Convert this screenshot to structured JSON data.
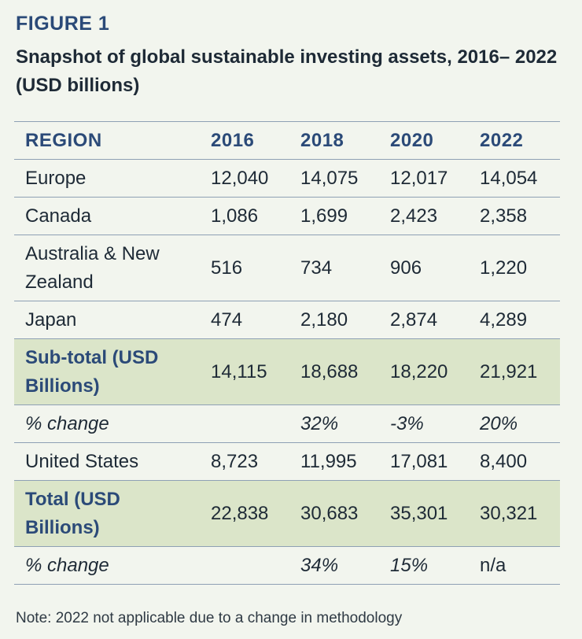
{
  "figure": {
    "label": "FIGURE 1",
    "title": "Snapshot of global sustainable investing assets, 2016– 2022 (USD billions)"
  },
  "table": {
    "header": [
      "REGION",
      "2016",
      "2018",
      "2020",
      "2022"
    ],
    "rows": [
      {
        "region": "Europe",
        "values": [
          "12,040",
          "14,075",
          "12,017",
          "14,054"
        ]
      },
      {
        "region": "Canada",
        "values": [
          "1,086",
          "1,699",
          "2,423",
          "2,358"
        ]
      },
      {
        "region": "Australia & New Zealand",
        "values": [
          "516",
          "734",
          "906",
          "1,220"
        ]
      },
      {
        "region": "Japan",
        "values": [
          "474",
          "2,180",
          "2,874",
          "4,289"
        ]
      },
      {
        "region": "Sub-total (USD Billions)",
        "values": [
          "14,115",
          "18,688",
          "18,220",
          "21,921"
        ]
      },
      {
        "region": "% change",
        "values": [
          "",
          "32%",
          "-3%",
          "20%"
        ]
      },
      {
        "region": "United States",
        "values": [
          "8,723",
          "11,995",
          "17,081",
          "8,400"
        ]
      },
      {
        "region": "Total (USD Billions)",
        "values": [
          "22,838",
          "30,683",
          "35,301",
          "30,321"
        ]
      },
      {
        "region": "% change",
        "values": [
          "",
          "34%",
          "15%",
          "n/a"
        ]
      }
    ]
  },
  "note": "Note: 2022 not applicable due to a change in methodology",
  "colors": {
    "background": "#f2f5ee",
    "accent_navy": "#2b4a78",
    "shaded_row": "#dbe5c9",
    "rule": "#8ea0b4"
  }
}
